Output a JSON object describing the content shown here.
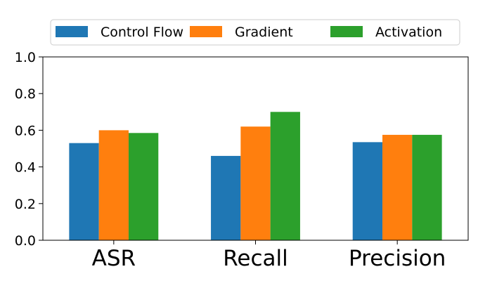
{
  "chart_data": {
    "type": "bar",
    "title": "",
    "xlabel": "",
    "ylabel": "",
    "categories": [
      "ASR",
      "Recall",
      "Precision"
    ],
    "series": [
      {
        "name": "Control Flow",
        "values": [
          0.53,
          0.46,
          0.535
        ],
        "color": "#1f77b4"
      },
      {
        "name": "Gradient",
        "values": [
          0.6,
          0.62,
          0.575
        ],
        "color": "#ff7f0e"
      },
      {
        "name": "Activation",
        "values": [
          0.585,
          0.7,
          0.575
        ],
        "color": "#2ca02c"
      }
    ],
    "ylim": [
      0,
      1.0
    ],
    "yticks": [
      "0.0",
      "0.2",
      "0.4",
      "0.6",
      "0.8",
      "1.0"
    ],
    "grid": false,
    "legend_placement": "top"
  }
}
